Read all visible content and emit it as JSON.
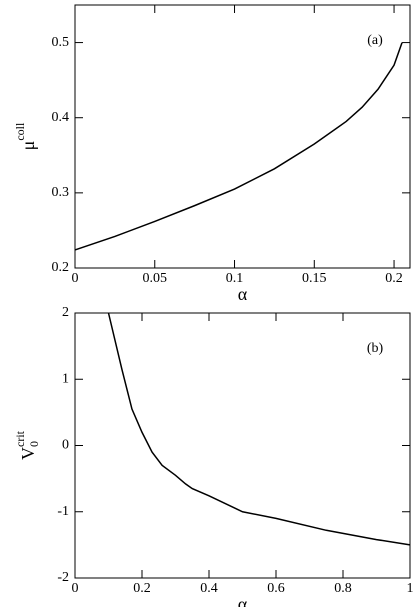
{
  "chart_data": [
    {
      "type": "line",
      "annotation": "(a)",
      "xlabel": "α",
      "ylabel": {
        "base": "μ",
        "sup": "coll"
      },
      "x": [
        0,
        0.025,
        0.05,
        0.075,
        0.1,
        0.125,
        0.15,
        0.17,
        0.18,
        0.19,
        0.2,
        0.205
      ],
      "series": [
        {
          "color": "#000000",
          "values": [
            0.224,
            0.242,
            0.262,
            0.283,
            0.305,
            0.332,
            0.365,
            0.395,
            0.414,
            0.438,
            0.47,
            0.5
          ]
        }
      ],
      "xlim": [
        0,
        0.21
      ],
      "xticks": [
        0,
        0.05,
        0.1,
        0.15,
        0.2
      ],
      "ylim": [
        0.2,
        0.55
      ],
      "yticks": [
        0.2,
        0.3,
        0.4,
        0.5
      ]
    },
    {
      "type": "line",
      "annotation": "(b)",
      "xlabel": "α",
      "ylabel": {
        "base": "V",
        "sub": "0",
        "sup": "crit"
      },
      "x": [
        0.1,
        0.14,
        0.17,
        0.2,
        0.23,
        0.26,
        0.3,
        0.33,
        0.35,
        0.4,
        0.5,
        0.6,
        0.75,
        0.9,
        1
      ],
      "series": [
        {
          "color": "#000000",
          "values": [
            2,
            1.15,
            0.55,
            0.2,
            -0.1,
            -0.3,
            -0.45,
            -0.58,
            -0.65,
            -0.76,
            -1,
            -1.1,
            -1.28,
            -1.42,
            -1.5
          ]
        }
      ],
      "xlim": [
        0,
        1
      ],
      "xticks": [
        0,
        0.2,
        0.4,
        0.6,
        0.8,
        1
      ],
      "ylim": [
        -2,
        2
      ],
      "yticks": [
        -2,
        -1,
        0,
        1,
        2
      ]
    }
  ]
}
